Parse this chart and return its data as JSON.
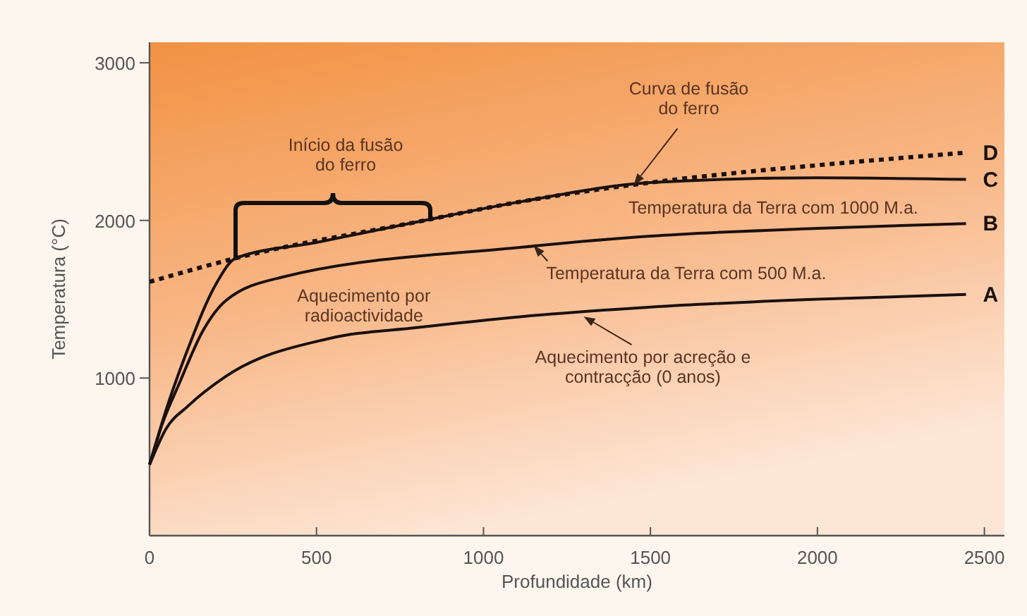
{
  "chart_data": {
    "type": "line",
    "xlabel": "Profundidade (km)",
    "ylabel": "Temperatura (°C)",
    "xlim": [
      0,
      2560
    ],
    "xticks": [
      0,
      500,
      1000,
      1500,
      2000,
      2500
    ],
    "ylim": [
      0,
      3130
    ],
    "yticks": [
      1000,
      2000,
      3000
    ],
    "grid": false,
    "legend": false,
    "marker": "none",
    "series": [
      {
        "name": "A",
        "color": "#1a1010",
        "line_style": "solid",
        "x": [
          0,
          50,
          114,
          228,
          536,
          800,
          1115,
          1500,
          2000,
          2445
        ],
        "values": [
          450,
          680,
          820,
          1010,
          1250,
          1320,
          1390,
          1450,
          1500,
          1530
        ]
      },
      {
        "name": "B",
        "color": "#1a1010",
        "line_style": "solid",
        "x": [
          0,
          40,
          88,
          160,
          228,
          397,
          1115,
          1500,
          2000,
          2445
        ],
        "values": [
          450,
          720,
          960,
          1300,
          1490,
          1640,
          1830,
          1900,
          1950,
          1980
        ]
      },
      {
        "name": "C",
        "color": "#1a1010",
        "line_style": "solid",
        "x": [
          0,
          50,
          114,
          200,
          258,
          500,
          800,
          1115,
          1500,
          2000,
          2445
        ],
        "values": [
          450,
          800,
          1180,
          1600,
          1760,
          1860,
          1990,
          2120,
          2240,
          2270,
          2260
        ]
      },
      {
        "name": "D",
        "color": "#1a1010",
        "line_style": "dotted",
        "x": [
          0,
          258,
          800,
          1115,
          1500,
          1750,
          2000,
          2445
        ],
        "values": [
          1610,
          1760,
          1990,
          2120,
          2240,
          2300,
          2350,
          2430
        ]
      }
    ],
    "annotations": [
      "Início da fusão\ndo ferro",
      {
        "text": "Curva de fusão\ndo ferro",
        "x": 1450,
        "y": 2225
      },
      {
        "text": "Temperatura da Terra com 1000 M.a.",
        "x": 2000,
        "y": 2265
      },
      {
        "text": "Temperatura da Terra com 500 M.a.",
        "x": 1150,
        "y": 1840
      },
      {
        "text": "Aquecimento por\nradioactividade",
        "x": 650,
        "y": 1700
      },
      {
        "text": "Aquecimento por acreção e\ncontracção (0 anos)",
        "x": 1300,
        "y": 1390
      }
    ]
  }
}
